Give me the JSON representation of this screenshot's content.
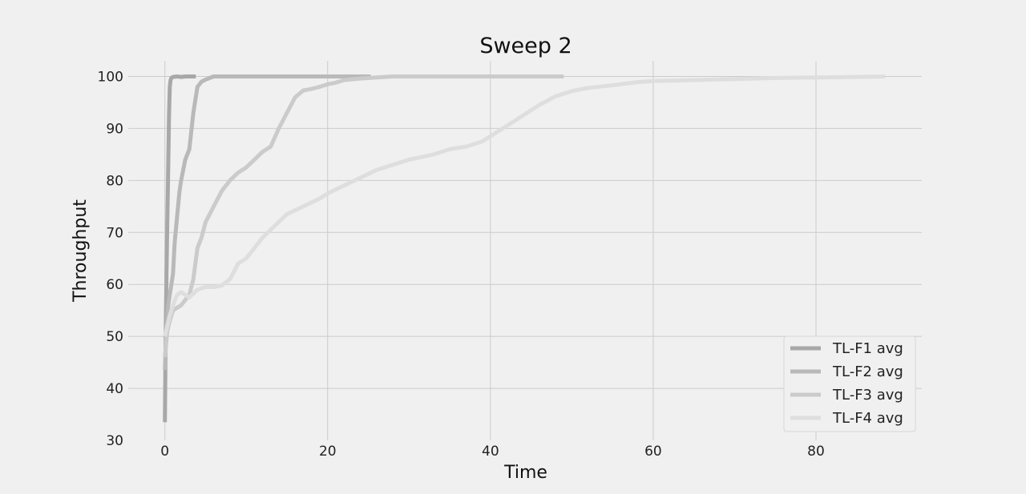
{
  "chart_data": {
    "type": "line",
    "title": "Sweep 2",
    "xlabel": "Time",
    "ylabel": "Throughput",
    "xlim": [
      -4.5,
      93
    ],
    "ylim": [
      30,
      103
    ],
    "xticks": [
      0,
      20,
      40,
      60,
      80
    ],
    "yticks": [
      30,
      40,
      50,
      60,
      70,
      80,
      90,
      100
    ],
    "grid": true,
    "legend_position": "lower-right",
    "series": [
      {
        "name": "TL-F1 avg",
        "color": "#a8a8a8",
        "x": [
          0,
          0.05,
          0.1,
          0.15,
          0.2,
          0.3,
          0.4,
          0.5,
          0.6,
          0.7,
          0.8,
          1.0,
          1.5,
          2.0,
          2.5,
          3.0,
          3.5,
          3.8
        ],
        "y": [
          33.5,
          42,
          50,
          56,
          62,
          72,
          82,
          92,
          98,
          99.3,
          99.7,
          99.9,
          100,
          99.9,
          100,
          100,
          100,
          100
        ]
      },
      {
        "name": "TL-F2 avg",
        "color": "#b9b9b9",
        "x": [
          0,
          0.2,
          0.4,
          0.6,
          0.8,
          1.0,
          1.2,
          1.5,
          1.8,
          2.0,
          2.5,
          3.0,
          3.5,
          4.0,
          4.5,
          5.0,
          5.5,
          6.0,
          8.0,
          10.0,
          15.0,
          20.0,
          25.3
        ],
        "y": [
          43.5,
          52,
          56,
          58,
          60,
          62,
          68,
          73,
          78,
          80,
          84,
          86,
          93,
          98,
          99,
          99.4,
          99.7,
          100,
          100,
          100,
          100,
          100,
          100
        ]
      },
      {
        "name": "TL-F3 avg",
        "color": "#cbcbcb",
        "x": [
          0,
          0.3,
          0.6,
          1.0,
          1.5,
          2.0,
          2.5,
          3.0,
          3.5,
          4.0,
          4.5,
          5.0,
          6.0,
          7.0,
          8.0,
          9.0,
          10.0,
          11.0,
          12.0,
          13.0,
          14.0,
          15.0,
          16.0,
          17.0,
          18.0,
          19.0,
          20.0,
          21.0,
          22.0,
          24.0,
          26.0,
          28.0,
          32.0,
          40.0,
          49.0
        ],
        "y": [
          46,
          51,
          53,
          55,
          55.5,
          56,
          57,
          58,
          61,
          67,
          69,
          72,
          75,
          78,
          80,
          81.5,
          82.5,
          84,
          85.5,
          86.5,
          90,
          93,
          96,
          97.3,
          97.6,
          98,
          98.5,
          98.8,
          99.3,
          99.6,
          99.8,
          100,
          100,
          100,
          100
        ]
      },
      {
        "name": "TL-F4 avg",
        "color": "#dedede",
        "x": [
          0,
          0.3,
          0.6,
          1.0,
          1.5,
          2.0,
          2.5,
          3.0,
          4.0,
          5.0,
          6.0,
          7.0,
          8.0,
          9.0,
          10.0,
          11.0,
          12.0,
          13.0,
          14.0,
          15.0,
          17.0,
          19.0,
          20.0,
          22.0,
          24.0,
          26.0,
          28.0,
          30.0,
          33.0,
          35.0,
          37.0,
          39.0,
          40.0,
          42.0,
          44.0,
          46.0,
          48.0,
          50.0,
          52.0,
          55.0,
          58.0,
          60.0,
          65.0,
          70.0,
          75.0,
          80.0,
          85.0,
          88.5
        ],
        "y": [
          50,
          52,
          54,
          56,
          58,
          58.5,
          58,
          57.5,
          59,
          59.5,
          59.5,
          59.8,
          61,
          64,
          65,
          67,
          69,
          70.5,
          72,
          73.5,
          75,
          76.5,
          77.5,
          79,
          80.5,
          82,
          83,
          84,
          85,
          86,
          86.5,
          87.5,
          88.5,
          90.5,
          92.5,
          94.5,
          96.2,
          97.2,
          97.8,
          98.3,
          98.9,
          99.1,
          99.3,
          99.5,
          99.7,
          99.8,
          99.9,
          100
        ]
      }
    ]
  }
}
